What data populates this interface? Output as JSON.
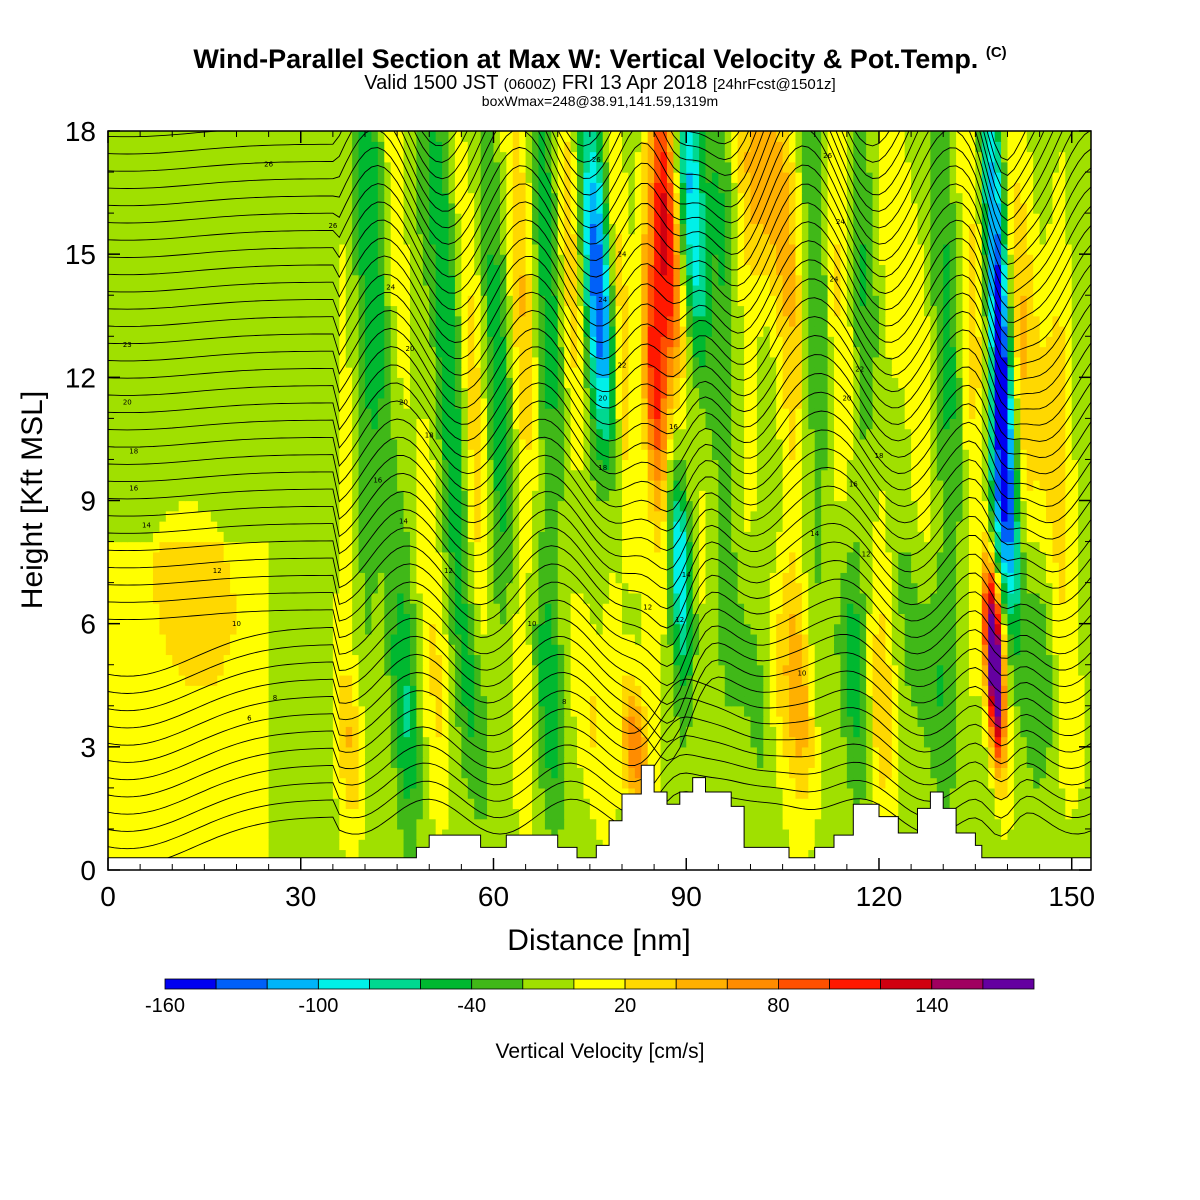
{
  "header": {
    "title_main": "Wind-Parallel Section at Max W: Vertical Velocity & Pot.Temp.",
    "title_mark": "(C)",
    "valid_a": "Valid 1500 JST",
    "valid_z": "(0600Z)",
    "valid_b": "FRI 13 Apr 2018",
    "valid_fcst": "[24hrFcst@1501z]",
    "box_info": "boxWmax=248@38.91,141.59,1319m"
  },
  "chart_data": {
    "type": "heatmap",
    "xlabel": "Distance [nm]",
    "ylabel": "Height [Kft MSL]",
    "xlim": [
      0,
      153
    ],
    "ylim": [
      0,
      18
    ],
    "x_ticks": [
      0,
      30,
      60,
      90,
      120,
      150
    ],
    "y_ticks": [
      0,
      3,
      6,
      9,
      12,
      15,
      18
    ],
    "colorbar": {
      "title": "Vertical Velocity [cm/s]",
      "tick_labels": [
        "-160",
        "-100",
        "-40",
        "20",
        "80",
        "140"
      ],
      "tick_values": [
        -160,
        -100,
        -40,
        20,
        80,
        140
      ],
      "bins": [
        -160,
        -140,
        -120,
        -100,
        -80,
        -60,
        -40,
        -20,
        0,
        20,
        40,
        60,
        80,
        100,
        120,
        140,
        160,
        180
      ],
      "colors": [
        "#0000f0",
        "#0060f8",
        "#00b4f8",
        "#00f0e8",
        "#00d890",
        "#00b830",
        "#40b818",
        "#a0e000",
        "#ffff00",
        "#ffd800",
        "#ffb000",
        "#ff8c00",
        "#ff5000",
        "#ff1800",
        "#d00010",
        "#a00060",
        "#6400a0"
      ]
    },
    "terrain": [
      [
        0,
        0.3
      ],
      [
        48,
        0.3
      ],
      [
        48,
        0.55
      ],
      [
        50,
        0.55
      ],
      [
        50,
        0.85
      ],
      [
        58,
        0.85
      ],
      [
        58,
        0.55
      ],
      [
        62,
        0.55
      ],
      [
        62,
        0.85
      ],
      [
        70,
        0.85
      ],
      [
        70,
        0.55
      ],
      [
        73,
        0.55
      ],
      [
        73,
        0.3
      ],
      [
        76,
        0.3
      ],
      [
        76,
        0.6
      ],
      [
        78,
        0.6
      ],
      [
        78,
        1.2
      ],
      [
        80,
        1.2
      ],
      [
        80,
        1.85
      ],
      [
        83,
        1.85
      ],
      [
        83,
        2.55
      ],
      [
        85,
        2.55
      ],
      [
        85,
        1.9
      ],
      [
        87,
        1.9
      ],
      [
        87,
        1.6
      ],
      [
        89,
        1.6
      ],
      [
        89,
        1.9
      ],
      [
        91,
        1.9
      ],
      [
        91,
        2.25
      ],
      [
        93,
        2.25
      ],
      [
        93,
        1.9
      ],
      [
        97,
        1.9
      ],
      [
        97,
        1.55
      ],
      [
        99,
        1.55
      ],
      [
        99,
        0.55
      ],
      [
        106,
        0.55
      ],
      [
        106,
        0.3
      ],
      [
        110,
        0.3
      ],
      [
        110,
        0.55
      ],
      [
        113,
        0.55
      ],
      [
        113,
        0.85
      ],
      [
        116,
        0.85
      ],
      [
        116,
        1.6
      ],
      [
        120,
        1.6
      ],
      [
        120,
        1.3
      ],
      [
        123,
        1.3
      ],
      [
        123,
        0.9
      ],
      [
        126,
        0.9
      ],
      [
        126,
        1.5
      ],
      [
        128,
        1.5
      ],
      [
        128,
        1.9
      ],
      [
        130,
        1.9
      ],
      [
        130,
        1.5
      ],
      [
        132,
        1.5
      ],
      [
        132,
        0.9
      ],
      [
        135,
        0.9
      ],
      [
        135,
        0.6
      ],
      [
        136,
        0.6
      ],
      [
        136,
        0.3
      ],
      [
        153,
        0.3
      ]
    ],
    "w_features": [
      {
        "x": 13,
        "z": 6.5,
        "sx": 7,
        "sz": 2.2,
        "w": 22
      },
      {
        "x": 5,
        "z": 4.5,
        "sx": 3,
        "sz": 1.5,
        "w": -8
      },
      {
        "x": 42,
        "z": 14,
        "sx": 2,
        "sz": 6,
        "w": -45
      },
      {
        "x": 46,
        "z": 13,
        "sx": 1.6,
        "sz": 5,
        "w": 30
      },
      {
        "x": 52,
        "z": 14.5,
        "sx": 1.8,
        "sz": 5,
        "w": -55
      },
      {
        "x": 56,
        "z": 13,
        "sx": 1.6,
        "sz": 5,
        "w": 38
      },
      {
        "x": 60,
        "z": 13,
        "sx": 1.8,
        "sz": 5,
        "w": -35
      },
      {
        "x": 64,
        "z": 15,
        "sx": 1.6,
        "sz": 4,
        "w": 42
      },
      {
        "x": 69,
        "z": 14.5,
        "sx": 2,
        "sz": 5,
        "w": -40
      },
      {
        "x": 72,
        "z": 15,
        "sx": 1.6,
        "sz": 4,
        "w": 50
      },
      {
        "x": 76,
        "z": 15.5,
        "sx": 2,
        "sz": 3,
        "w": -70
      },
      {
        "x": 77,
        "z": 13,
        "sx": 1.5,
        "sz": 2.5,
        "w": -80
      },
      {
        "x": 80,
        "z": 12.5,
        "sx": 1.4,
        "sz": 4,
        "w": 58
      },
      {
        "x": 87,
        "z": 15.5,
        "sx": 1.6,
        "sz": 3,
        "w": 130
      },
      {
        "x": 85,
        "z": 12,
        "sx": 1.4,
        "sz": 2.5,
        "w": 100
      },
      {
        "x": 91,
        "z": 16,
        "sx": 1.5,
        "sz": 3,
        "w": -100
      },
      {
        "x": 89,
        "z": 7.5,
        "sx": 1.3,
        "sz": 2,
        "w": -85
      },
      {
        "x": 95,
        "z": 16.5,
        "sx": 1.6,
        "sz": 2.5,
        "w": -30
      },
      {
        "x": 102,
        "z": 17,
        "sx": 3,
        "sz": 2,
        "w": 55
      },
      {
        "x": 106,
        "z": 14,
        "sx": 2.5,
        "sz": 3,
        "w": 35
      },
      {
        "x": 110,
        "z": 15,
        "sx": 2,
        "sz": 4,
        "w": -35
      },
      {
        "x": 114,
        "z": 14,
        "sx": 2,
        "sz": 4,
        "w": 30
      },
      {
        "x": 118,
        "z": 14,
        "sx": 2,
        "sz": 3,
        "w": -30
      },
      {
        "x": 124,
        "z": 14,
        "sx": 2,
        "sz": 4,
        "w": 32
      },
      {
        "x": 130,
        "z": 14,
        "sx": 2,
        "sz": 4,
        "w": -30
      },
      {
        "x": 135,
        "z": 13,
        "sx": 1.8,
        "sz": 4,
        "w": 28
      },
      {
        "x": 139,
        "z": 13,
        "sx": 1.2,
        "sz": 4.5,
        "w": -140
      },
      {
        "x": 139,
        "z": 9,
        "sx": 1.2,
        "sz": 2,
        "w": -90
      },
      {
        "x": 143,
        "z": 12,
        "sx": 2,
        "sz": 4,
        "w": 40
      },
      {
        "x": 147,
        "z": 11,
        "sx": 2.5,
        "sz": 3,
        "w": 30
      },
      {
        "x": 138,
        "z": 4.5,
        "sx": 0.9,
        "sz": 1.5,
        "w": 175
      },
      {
        "x": 138,
        "z": 6,
        "sx": 1,
        "sz": 1.2,
        "w": 110
      },
      {
        "x": 82,
        "z": 3,
        "sx": 1.4,
        "sz": 1.2,
        "w": 90
      },
      {
        "x": 100,
        "z": 5,
        "sx": 2,
        "sz": 2,
        "w": -30
      },
      {
        "x": 104,
        "z": 5,
        "sx": 1.8,
        "sz": 2,
        "w": 35
      },
      {
        "x": 108,
        "z": 4,
        "sx": 1.5,
        "sz": 2,
        "w": 55
      },
      {
        "x": 116,
        "z": 5,
        "sx": 2,
        "sz": 2,
        "w": -45
      },
      {
        "x": 120,
        "z": 4,
        "sx": 2,
        "sz": 2,
        "w": 40
      },
      {
        "x": 128,
        "z": 5,
        "sx": 2,
        "sz": 2,
        "w": -40
      },
      {
        "x": 146,
        "z": 5,
        "sx": 2,
        "sz": 2,
        "w": -30
      },
      {
        "x": 150,
        "z": 4,
        "sx": 2,
        "sz": 2,
        "w": 25
      },
      {
        "x": 38,
        "z": 3,
        "sx": 1.5,
        "sz": 1.5,
        "w": 45
      },
      {
        "x": 46,
        "z": 4,
        "sx": 1.5,
        "sz": 2,
        "w": -40
      },
      {
        "x": 52,
        "z": 4,
        "sx": 1.5,
        "sz": 2,
        "w": 25
      },
      {
        "x": 57,
        "z": 4,
        "sx": 1.5,
        "sz": 2,
        "w": -42
      },
      {
        "x": 64,
        "z": 4,
        "sx": 1.5,
        "sz": 2,
        "w": 25
      },
      {
        "x": 69,
        "z": 4,
        "sx": 1.5,
        "sz": 2,
        "w": -45
      },
      {
        "x": 75,
        "z": 4,
        "sx": 1.5,
        "sz": 2,
        "w": 40
      }
    ],
    "theta_labels": [
      {
        "x": 25,
        "z": 17.2,
        "t": "26"
      },
      {
        "x": 35,
        "z": 15.7,
        "t": "26"
      },
      {
        "x": 3,
        "z": 12.8,
        "t": "23"
      },
      {
        "x": 3,
        "z": 11.4,
        "t": "20"
      },
      {
        "x": 4,
        "z": 10.2,
        "t": "18"
      },
      {
        "x": 4,
        "z": 9.3,
        "t": "16"
      },
      {
        "x": 6,
        "z": 8.4,
        "t": "14"
      },
      {
        "x": 17,
        "z": 7.3,
        "t": "12"
      },
      {
        "x": 20,
        "z": 6.0,
        "t": "10"
      },
      {
        "x": 26,
        "z": 4.2,
        "t": "8"
      },
      {
        "x": 22,
        "z": 3.7,
        "t": "6"
      },
      {
        "x": 44,
        "z": 14.2,
        "t": "24"
      },
      {
        "x": 47,
        "z": 12.7,
        "t": "20"
      },
      {
        "x": 46,
        "z": 11.4,
        "t": "20"
      },
      {
        "x": 50,
        "z": 10.6,
        "t": "18"
      },
      {
        "x": 42,
        "z": 9.5,
        "t": "16"
      },
      {
        "x": 46,
        "z": 8.5,
        "t": "14"
      },
      {
        "x": 53,
        "z": 7.3,
        "t": "12"
      },
      {
        "x": 66,
        "z": 6.0,
        "t": "10"
      },
      {
        "x": 71,
        "z": 4.1,
        "t": "8"
      },
      {
        "x": 76,
        "z": 17.3,
        "t": "26"
      },
      {
        "x": 80,
        "z": 15.0,
        "t": "24"
      },
      {
        "x": 77,
        "z": 13.9,
        "t": "24"
      },
      {
        "x": 80,
        "z": 12.3,
        "t": "22"
      },
      {
        "x": 77,
        "z": 11.5,
        "t": "20"
      },
      {
        "x": 77,
        "z": 9.8,
        "t": "18"
      },
      {
        "x": 88,
        "z": 10.8,
        "t": "16"
      },
      {
        "x": 90,
        "z": 7.2,
        "t": "14"
      },
      {
        "x": 84,
        "z": 6.4,
        "t": "12"
      },
      {
        "x": 89,
        "z": 6.1,
        "t": "12"
      },
      {
        "x": 112,
        "z": 17.4,
        "t": "26"
      },
      {
        "x": 114,
        "z": 15.8,
        "t": "24"
      },
      {
        "x": 113,
        "z": 14.4,
        "t": "24"
      },
      {
        "x": 117,
        "z": 12.2,
        "t": "22"
      },
      {
        "x": 115,
        "z": 11.5,
        "t": "20"
      },
      {
        "x": 120,
        "z": 10.1,
        "t": "18"
      },
      {
        "x": 116,
        "z": 9.4,
        "t": "16"
      },
      {
        "x": 110,
        "z": 8.2,
        "t": "14"
      },
      {
        "x": 118,
        "z": 7.7,
        "t": "12"
      },
      {
        "x": 108,
        "z": 4.8,
        "t": "10"
      }
    ]
  }
}
